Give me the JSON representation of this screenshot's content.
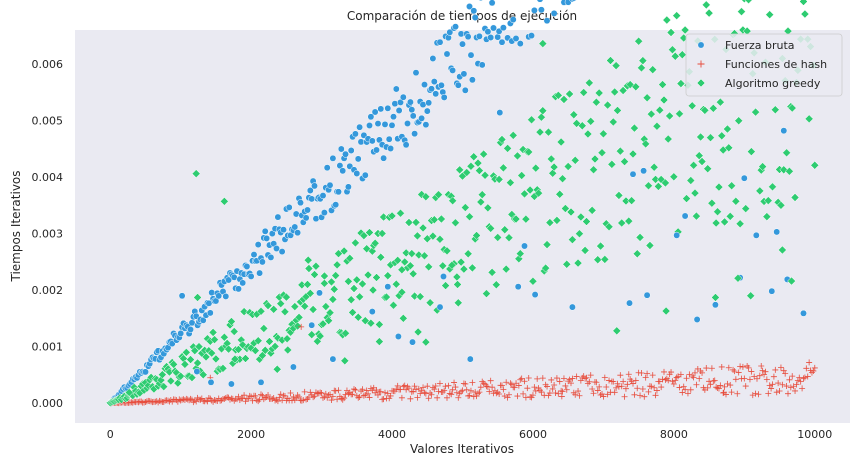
{
  "chart_data": {
    "type": "scatter",
    "title": "Comparación de tiempos de ejecución",
    "xlabel": "Valores Iterativos",
    "ylabel": "Tiempos Iterativos",
    "xlim": [
      -500,
      10500
    ],
    "ylim": [
      -0.00035,
      0.0066
    ],
    "xticks": [
      0,
      2000,
      4000,
      6000,
      8000,
      10000
    ],
    "xtick_labels": [
      "0",
      "2000",
      "4000",
      "6000",
      "8000",
      "10000"
    ],
    "yticks": [
      0,
      0.001,
      0.002,
      0.003,
      0.004,
      0.005,
      0.006
    ],
    "ytick_labels": [
      "0.000",
      "0.001",
      "0.002",
      "0.003",
      "0.004",
      "0.005",
      "0.006"
    ],
    "grid": false,
    "background": "#eaeaf2",
    "legend_position": "top-right",
    "series": [
      {
        "name": "Fuerza bruta",
        "marker": "circle",
        "color": "#3498db",
        "trend": {
          "x_start": 0,
          "x_end": 10000,
          "low_slope": 0.000108,
          "high_slope": 0.000138,
          "spread_base": 1.5e-05
        },
        "points": [
          [
            1020,
            0.0019
          ],
          [
            1230,
            0.00056
          ],
          [
            1430,
            0.00037
          ],
          [
            1720,
            0.00034
          ],
          [
            2140,
            0.00037
          ],
          [
            2600,
            0.00064
          ],
          [
            2860,
            0.00138
          ],
          [
            2970,
            0.00195
          ],
          [
            3160,
            0.00078
          ],
          [
            3720,
            0.00162
          ],
          [
            3940,
            0.00206
          ],
          [
            4090,
            0.00118
          ],
          [
            4290,
            0.00108
          ],
          [
            4680,
            0.0017
          ],
          [
            4730,
            0.00224
          ],
          [
            5110,
            0.00078
          ],
          [
            5530,
            0.00514
          ],
          [
            5790,
            0.00206
          ],
          [
            5880,
            0.00278
          ],
          [
            6030,
            0.00192
          ],
          [
            6560,
            0.0017
          ],
          [
            7370,
            0.00177
          ],
          [
            7420,
            0.00405
          ],
          [
            7570,
            0.00411
          ],
          [
            7620,
            0.00191
          ],
          [
            8040,
            0.00297
          ],
          [
            8160,
            0.00331
          ],
          [
            8330,
            0.00148
          ],
          [
            8590,
            0.00174
          ],
          [
            8940,
            0.00222
          ],
          [
            9000,
            0.00398
          ],
          [
            9170,
            0.00297
          ],
          [
            9390,
            0.00198
          ],
          [
            9460,
            0.00303
          ],
          [
            9560,
            0.00482
          ],
          [
            9610,
            0.00219
          ],
          [
            9840,
            0.00159
          ]
        ]
      },
      {
        "name": "Funciones de hash",
        "marker": "plus",
        "color": "#e74c3c",
        "trend": {
          "x_start": 0,
          "x_end": 10000,
          "low_slope": 1.5e-06,
          "high_slope": 7.5e-06,
          "spread_base": 2e-06
        },
        "points": [
          [
            1420,
            0.00045
          ],
          [
            2710,
            0.00135
          ],
          [
            6410,
            0.00012
          ],
          [
            8710,
            0.00019
          ]
        ]
      },
      {
        "name": "Algoritmo greedy",
        "marker": "diamond",
        "color": "#2ecc71",
        "trend": {
          "x_start": 0,
          "x_end": 10000,
          "low_slope": 3.52e-05,
          "high_slope": 8.6e-05,
          "spread_base": 1e-05
        },
        "points": [
          [
            270,
            0.00019
          ],
          [
            1220,
            0.00406
          ],
          [
            1240,
            0.00187
          ],
          [
            1620,
            0.00357
          ],
          [
            1770,
            0.00078
          ],
          [
            2370,
            0.0006
          ],
          [
            2510,
            0.00114
          ],
          [
            2810,
            0.00253
          ],
          [
            3040,
            0.00212
          ],
          [
            3330,
            0.00075
          ],
          [
            3730,
            0.002
          ],
          [
            3820,
            0.00109
          ],
          [
            4140,
            0.00236
          ],
          [
            4370,
            0.00126
          ],
          [
            4480,
            0.00108
          ],
          [
            4850,
            0.00244
          ],
          [
            4930,
            0.0021
          ],
          [
            6140,
            0.00636
          ],
          [
            7190,
            0.00128
          ],
          [
            7890,
            0.00163
          ],
          [
            8590,
            0.00187
          ],
          [
            8910,
            0.00221
          ],
          [
            9090,
            0.0019
          ],
          [
            9540,
            0.00271
          ],
          [
            9670,
            0.00216
          ]
        ]
      }
    ]
  }
}
